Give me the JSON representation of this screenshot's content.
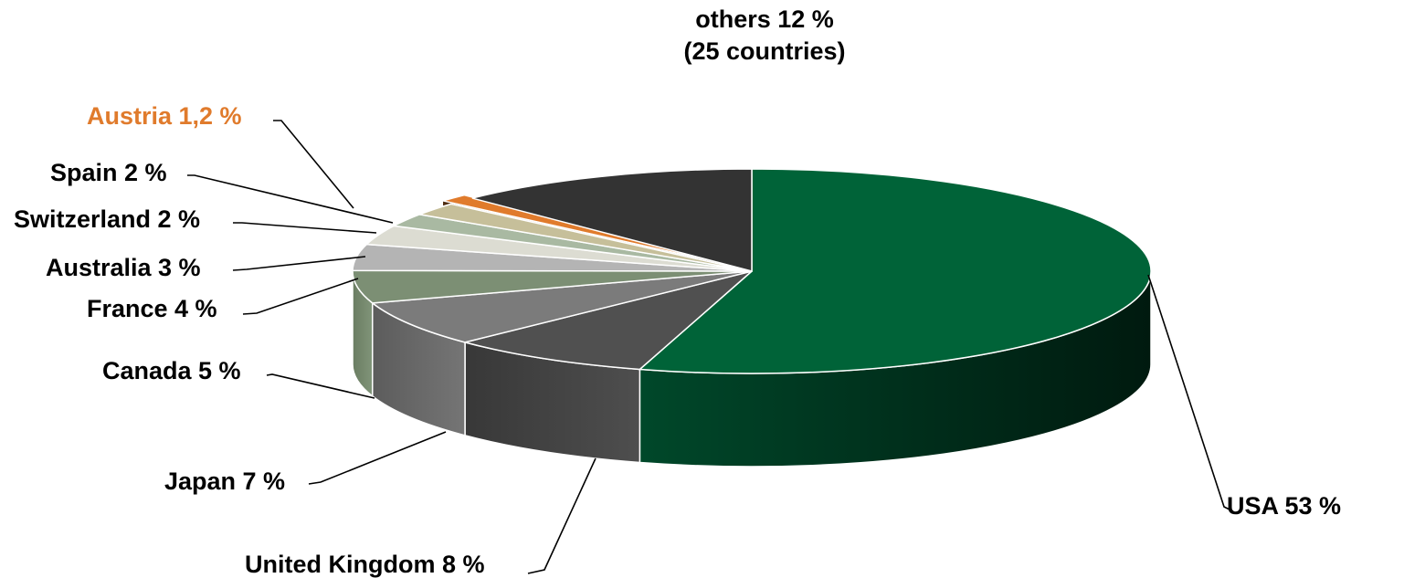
{
  "chart_data": {
    "type": "pie",
    "style": "3d-exploded",
    "title": "",
    "slices": [
      {
        "name": "USA",
        "label": "USA 53 %",
        "value": 53,
        "color": "#006338"
      },
      {
        "name": "United Kingdom",
        "label": "United Kingdom 8 %",
        "value": 8,
        "color": "#505050"
      },
      {
        "name": "Japan",
        "label": "Japan 7 %",
        "value": 7,
        "color": "#7b7b7b"
      },
      {
        "name": "Canada",
        "label": "Canada 5 %",
        "value": 5,
        "color": "#7c8f74"
      },
      {
        "name": "France",
        "label": "France 4 %",
        "value": 4,
        "color": "#b4b4b4"
      },
      {
        "name": "Australia",
        "label": "Australia 3 %",
        "value": 3,
        "color": "#dcdcd2"
      },
      {
        "name": "Switzerland",
        "label": "Switzerland 2 %",
        "value": 2,
        "color": "#a9b9a2"
      },
      {
        "name": "Spain",
        "label": "Spain 2 %",
        "value": 2,
        "color": "#c6bf9a"
      },
      {
        "name": "Austria",
        "label": "Austria 1,2 %",
        "value": 1.2,
        "color": "#e07b2c",
        "label_color": "#e07b2c",
        "exploded": true
      },
      {
        "name": "others",
        "label": "others 12 %",
        "sublabel": "(25 countries)",
        "value": 12,
        "color": "#333333"
      }
    ]
  }
}
